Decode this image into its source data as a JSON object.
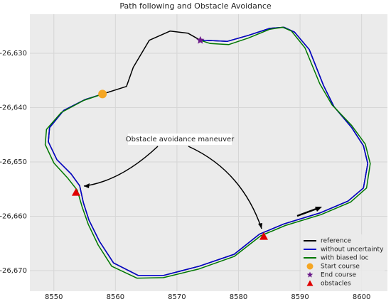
{
  "chart_data": {
    "type": "line",
    "title": "Path following and Obstacle Avoidance",
    "xlim": [
      8546.1,
      8604.2
    ],
    "ylim": [
      -26673.8,
      -26622.8
    ],
    "xticks": [
      8550,
      8560,
      8570,
      8580,
      8590,
      8600
    ],
    "yticks": [
      {
        "value": -26630,
        "label": "-26,630"
      },
      {
        "value": -26640,
        "label": "-26,640"
      },
      {
        "value": -26650,
        "label": "-26,650"
      },
      {
        "value": -26660,
        "label": "-26,660"
      },
      {
        "value": -26670,
        "label": "-26,670"
      }
    ],
    "grid": true,
    "legend": "lower right",
    "annotation": "Obstacle avoidance maneuver",
    "series": [
      {
        "name": "reference",
        "color": "#000000",
        "x": [
          8573.8,
          8571.8,
          8568.9,
          8565.5,
          8562.9,
          8561.8,
          8557.9,
          8555.1,
          8551.6,
          8549.3,
          8549.1,
          8550.5,
          8552.8,
          8554.2,
          8554.8,
          8555.7,
          8557.4,
          8559.7,
          8563.7,
          8567.8,
          8573.6,
          8579.3,
          8583.4,
          8587.4,
          8593.2,
          8597.8,
          8600.3,
          8601.0,
          8600.3,
          8598.4,
          8595.5,
          8593.8,
          8591.5,
          8589.1,
          8587.4,
          8585.1,
          8581.6,
          8578.2,
          8574.7
        ],
        "values": [
          -26627.6,
          -26626.3,
          -26625.9,
          -26627.6,
          -26632.6,
          -26636.1,
          -26637.5,
          -26638.5,
          -26640.5,
          -26643.7,
          -26646.3,
          -26649.6,
          -26652.2,
          -26654.4,
          -26657.5,
          -26660.7,
          -26664.6,
          -26668.6,
          -26670.9,
          -26670.9,
          -26669.2,
          -26667.0,
          -26663.3,
          -26661.4,
          -26659.4,
          -26657.2,
          -26654.8,
          -26650.3,
          -26647.0,
          -26643.7,
          -26639.8,
          -26635.9,
          -26629.3,
          -26626.1,
          -26625.2,
          -26625.4,
          -26626.7,
          -26627.8,
          -26627.6
        ]
      },
      {
        "name": "without uncertainty",
        "color": "#0000cc",
        "x": [
          8557.9,
          8555.1,
          8551.6,
          8549.3,
          8549.1,
          8550.5,
          8552.8,
          8554.2,
          8554.8,
          8555.7,
          8557.4,
          8559.7,
          8563.7,
          8567.8,
          8573.6,
          8579.3,
          8583.4,
          8587.4,
          8593.2,
          8597.8,
          8600.3,
          8601.0,
          8600.3,
          8598.4,
          8595.5,
          8593.8,
          8591.5,
          8589.1,
          8587.4,
          8585.1,
          8581.6,
          8578.2,
          8574.7,
          8573.8
        ],
        "values": [
          -26637.5,
          -26638.5,
          -26640.5,
          -26643.7,
          -26646.3,
          -26649.6,
          -26652.2,
          -26654.4,
          -26657.5,
          -26660.7,
          -26664.6,
          -26668.6,
          -26670.9,
          -26670.9,
          -26669.2,
          -26667.0,
          -26663.3,
          -26661.4,
          -26659.4,
          -26657.2,
          -26654.8,
          -26650.3,
          -26647.0,
          -26643.7,
          -26639.8,
          -26635.9,
          -26629.3,
          -26626.1,
          -26625.2,
          -26625.4,
          -26626.7,
          -26627.8,
          -26627.6,
          -26627.6
        ]
      },
      {
        "name": "with biased loc",
        "color": "#007700",
        "x": [
          8557.9,
          8554.8,
          8551.2,
          8548.8,
          8548.6,
          8550.0,
          8552.2,
          8553.8,
          8554.6,
          8555.6,
          8557.2,
          8559.4,
          8563.5,
          8567.8,
          8573.6,
          8579.3,
          8583.6,
          8587.6,
          8593.4,
          8598.2,
          8600.8,
          8601.4,
          8600.6,
          8598.4,
          8595.2,
          8593.2,
          8590.8,
          8588.6,
          8587.2,
          8585.0,
          8581.6,
          8578.4,
          8575.4,
          8573.8
        ],
        "values": [
          -26637.5,
          -26638.7,
          -26640.9,
          -26644.0,
          -26646.8,
          -26650.2,
          -26652.9,
          -26655.2,
          -26658.3,
          -26661.5,
          -26665.3,
          -26669.2,
          -26671.4,
          -26671.3,
          -26669.7,
          -26667.4,
          -26663.6,
          -26661.7,
          -26659.7,
          -26657.4,
          -26654.8,
          -26650.3,
          -26646.7,
          -26643.3,
          -26639.5,
          -26635.6,
          -26629.0,
          -26625.9,
          -26625.2,
          -26625.6,
          -26627.2,
          -26628.4,
          -26628.2,
          -26627.6
        ]
      },
      {
        "name": "Start course",
        "color": "#f5a623",
        "marker": "circle",
        "x": [
          8557.9
        ],
        "values": [
          -26637.5
        ]
      },
      {
        "name": "End course",
        "color": "#6a1b8a",
        "marker": "star",
        "x": [
          8573.8
        ],
        "values": [
          -26627.6
        ]
      },
      {
        "name": "obstacles",
        "color": "#e00000",
        "marker": "triangle",
        "x": [
          8553.6,
          8584.1
        ],
        "values": [
          -26655.6,
          -26663.7
        ]
      }
    ]
  }
}
